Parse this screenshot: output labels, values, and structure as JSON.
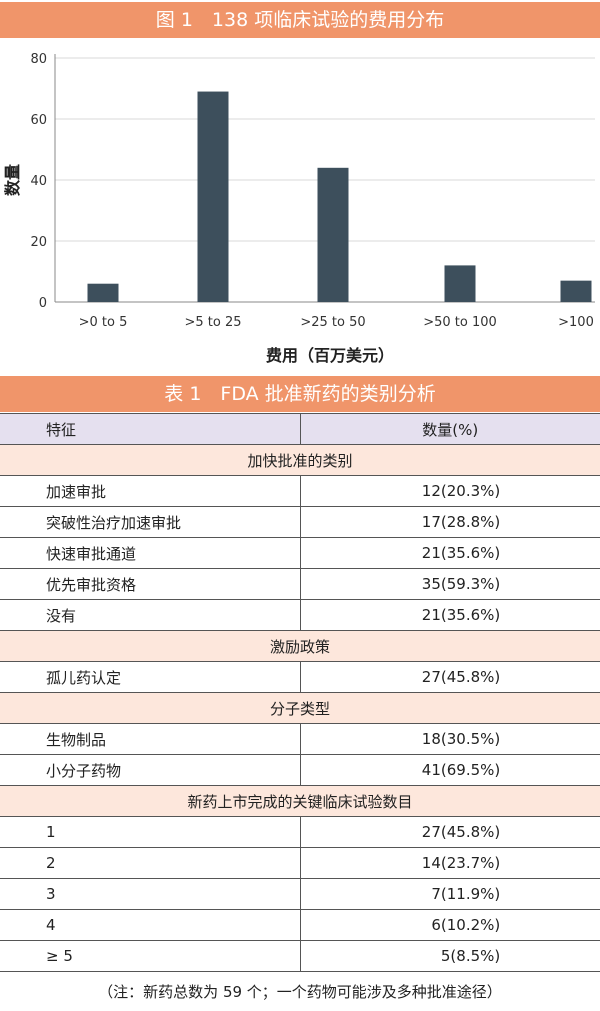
{
  "figure": {
    "title": "图 1　138 项临床试验的费用分布"
  },
  "chart_data": {
    "type": "bar",
    "categories": [
      ">0 to 5",
      ">5 to 25",
      ">25 to 50",
      ">50 to 100",
      ">100"
    ],
    "values": [
      6,
      69,
      44,
      12,
      7
    ],
    "xlabel": "费用（百万美元）",
    "ylabel": "数量",
    "ylim": [
      0,
      80
    ],
    "yticks": [
      0,
      20,
      40,
      60,
      80
    ],
    "grid": true,
    "bar_color": "#3d4f5c"
  },
  "table": {
    "title": "表 1　FDA 批准新药的类别分析",
    "headers": [
      "特征",
      "数量(%)"
    ],
    "sections": [
      {
        "heading": "加快批准的类别",
        "rows": [
          {
            "label": "加速审批",
            "value": "12(20.3%)"
          },
          {
            "label": "突破性治疗加速审批",
            "value": "17(28.8%)"
          },
          {
            "label": "快速审批通道",
            "value": "21(35.6%)"
          },
          {
            "label": "优先审批资格",
            "value": "35(59.3%)"
          },
          {
            "label": "没有",
            "value": "21(35.6%)"
          }
        ]
      },
      {
        "heading": "激励政策",
        "rows": [
          {
            "label": "孤儿药认定",
            "value": "27(45.8%)"
          }
        ]
      },
      {
        "heading": "分子类型",
        "rows": [
          {
            "label": "生物制品",
            "value": "18(30.5%)"
          },
          {
            "label": "小分子药物",
            "value": "41(69.5%)"
          }
        ]
      },
      {
        "heading": "新药上市完成的关键临床试验数目",
        "rows": [
          {
            "label": "1",
            "value": "27(45.8%)"
          },
          {
            "label": "2",
            "value": "14(23.7%)"
          },
          {
            "label": "3",
            "value": "7(11.9%)"
          },
          {
            "label": "4",
            "value": "6(10.2%)"
          },
          {
            "label": "≥ 5",
            "value": "5(8.5%)"
          }
        ]
      }
    ],
    "note": "（注：新药总数为 59 个；一个药物可能涉及多种批准途径）"
  },
  "colors": {
    "banner": "#f0956a",
    "header_row": "#e5e0ef",
    "section_row": "#fde7dc",
    "bar": "#3d4f5c"
  }
}
